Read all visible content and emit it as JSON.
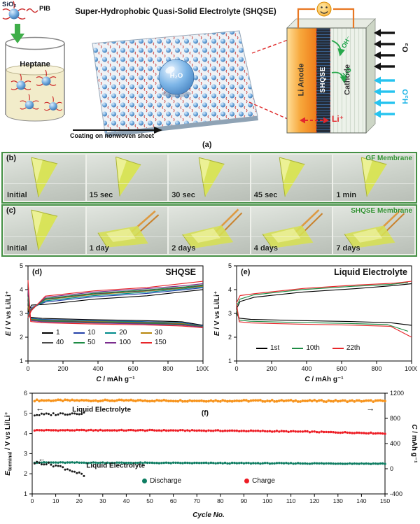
{
  "panel_a": {
    "title": "Super-Hydrophobic Quasi-Solid Electrolyte (SHQSE)",
    "sio2_label": "SiO₂",
    "pib_label": "PIB",
    "beaker_label": "Heptane",
    "droplet_label": "H₂O",
    "coating_label": "Coating on nonwoven sheet",
    "anode_label": "Li Anode",
    "separator_label": "SHQSE",
    "cathode_label": "Cathode",
    "o2_label": "O₂",
    "h2o_label": "H₂O",
    "oh_inner_label": "OH⁻",
    "h2o_inner_label": "H₂O",
    "li_ion_label": "Li⁺",
    "tag": "(a)"
  },
  "panel_b": {
    "tag": "(b)",
    "membrane_label": "GF Membrane",
    "frames": [
      "Initial",
      "15 sec",
      "30 sec",
      "45 sec",
      "1 min"
    ]
  },
  "panel_c": {
    "tag": "(c)",
    "membrane_label": "SHQSE Membrane",
    "frames": [
      "Initial",
      "1 day",
      "2 days",
      "4 days",
      "7 days"
    ]
  },
  "chart_data": [
    {
      "id": "d",
      "type": "line",
      "tag": "(d)",
      "title": "SHQSE",
      "xlabel": {
        "it": "C",
        "rest": " / mAh g⁻¹"
      },
      "ylabel": {
        "it": "E",
        "rest": " / V vs Li/Li⁺"
      },
      "xlim": [
        0,
        1000
      ],
      "ylim": [
        1,
        5
      ],
      "xticks": [
        0,
        200,
        400,
        600,
        800,
        1000
      ],
      "yticks": [
        1,
        2,
        3,
        4,
        5
      ],
      "series": [
        {
          "name": "1",
          "color": "#000000",
          "cap": 1000,
          "discharge": {
            "start": 3.1,
            "plateau": 2.74,
            "end": 2.5
          },
          "charge": {
            "start": 3.05,
            "mid": 3.6,
            "end": 4.0
          }
        },
        {
          "name": "10",
          "color": "#2441a8",
          "cap": 1000,
          "discharge": {
            "start": 3.05,
            "plateau": 2.7,
            "end": 2.48
          },
          "charge": {
            "start": 2.95,
            "mid": 3.7,
            "end": 4.08
          }
        },
        {
          "name": "20",
          "color": "#008b8b",
          "cap": 1000,
          "discharge": {
            "start": 3.0,
            "plateau": 2.68,
            "end": 2.46
          },
          "charge": {
            "start": 2.9,
            "mid": 3.75,
            "end": 4.12
          }
        },
        {
          "name": "30",
          "color": "#b8860b",
          "cap": 1000,
          "discharge": {
            "start": 3.3,
            "plateau": 2.66,
            "end": 2.45
          },
          "charge": {
            "start": 2.9,
            "mid": 3.8,
            "end": 4.15
          }
        },
        {
          "name": "40",
          "color": "#4d4d4d",
          "cap": 1000,
          "discharge": {
            "start": 3.5,
            "plateau": 2.64,
            "end": 2.44
          },
          "charge": {
            "start": 2.88,
            "mid": 3.82,
            "end": 4.17
          }
        },
        {
          "name": "50",
          "color": "#1e8c45",
          "cap": 1000,
          "discharge": {
            "start": 3.7,
            "plateau": 2.62,
            "end": 2.43
          },
          "charge": {
            "start": 2.86,
            "mid": 3.85,
            "end": 4.2
          }
        },
        {
          "name": "100",
          "color": "#7b2d8e",
          "cap": 1000,
          "discharge": {
            "start": 4.0,
            "plateau": 2.6,
            "end": 2.42
          },
          "charge": {
            "start": 2.84,
            "mid": 3.9,
            "end": 4.25
          }
        },
        {
          "name": "150",
          "color": "#e8262a",
          "cap": 1000,
          "discharge": {
            "start": 4.4,
            "plateau": 2.56,
            "end": 2.4
          },
          "charge": {
            "start": 2.82,
            "mid": 3.95,
            "end": 4.35
          }
        }
      ]
    },
    {
      "id": "e",
      "type": "line",
      "tag": "(e)",
      "title": "Liquid Electrolyte",
      "xlabel": {
        "it": "C",
        "rest": " / mAh g⁻¹"
      },
      "ylabel": {
        "it": "E",
        "rest": " / V vs Li/Li⁺"
      },
      "xlim": [
        0,
        1000
      ],
      "ylim": [
        1,
        5
      ],
      "xticks": [
        0,
        200,
        400,
        600,
        800,
        1000
      ],
      "yticks": [
        1,
        2,
        3,
        4,
        5
      ],
      "series": [
        {
          "name": "1st",
          "color": "#000000",
          "cap": 1000,
          "discharge": {
            "start": 3.0,
            "plateau": 2.7,
            "end": 2.5
          },
          "charge": {
            "start": 3.2,
            "mid": 3.9,
            "end": 4.25
          }
        },
        {
          "name": "10th",
          "color": "#1e8c45",
          "cap": 980,
          "discharge": {
            "start": 3.15,
            "plateau": 2.62,
            "end": 2.25
          },
          "charge": {
            "start": 3.3,
            "mid": 4.0,
            "end": 4.3
          }
        },
        {
          "name": "22th",
          "color": "#e8262a",
          "cap": 1000,
          "discharge": {
            "start": 3.4,
            "plateau": 2.55,
            "end": 2.0
          },
          "charge": {
            "start": 3.45,
            "mid": 4.05,
            "end": 4.35
          }
        }
      ]
    },
    {
      "id": "f",
      "type": "scatter",
      "tag": "(f)",
      "xlabel": {
        "it": "Cycle No.",
        "rest": ""
      },
      "ylabel_left": {
        "it": "E",
        "sub": "terminal",
        "rest": " / V vs Li/Li⁺"
      },
      "ylabel_right": {
        "it": "C",
        "rest": " / mAh g⁻¹"
      },
      "xlim": [
        0,
        150
      ],
      "xticks": [
        0,
        10,
        20,
        30,
        40,
        50,
        60,
        70,
        80,
        90,
        100,
        110,
        120,
        130,
        140,
        150
      ],
      "ylim_left": [
        1,
        6
      ],
      "yticks_left": [
        1,
        2,
        3,
        4,
        5,
        6
      ],
      "ylim_right": [
        -400,
        1200
      ],
      "yticks_right": [
        -400,
        0,
        400,
        800,
        1200
      ],
      "series": [
        {
          "name": "SHQSE capacity",
          "axis": "right",
          "color": "#f7941d",
          "x": [
            1,
            150
          ],
          "y": [
            1085,
            1075
          ],
          "jitter": 12,
          "r": 1.9
        },
        {
          "name": "SHQSE charge voltage",
          "axis": "left",
          "color": "#ed1c24",
          "x": [
            1,
            150
          ],
          "y": [
            4.16,
            4.0
          ],
          "pow": 3,
          "jitter": 0.022,
          "r": 1.7
        },
        {
          "name": "SHQSE discharge voltage",
          "axis": "left",
          "color": "#0e7d62",
          "x": [
            1,
            150
          ],
          "y": [
            2.56,
            2.5
          ],
          "jitter": 0.018,
          "r": 1.7
        },
        {
          "name": "Liquid electrolyte charge voltage",
          "axis": "left",
          "color": "#1a1a1a",
          "x": [
            1,
            22
          ],
          "y": [
            4.92,
            5.02
          ],
          "jitter": 0.06,
          "r": 1.5
        },
        {
          "name": "Liquid electrolyte discharge voltage",
          "axis": "left",
          "color": "#1a1a1a",
          "x": [
            1,
            22
          ],
          "y": [
            2.55,
            1.9
          ],
          "pow": 1.8,
          "jitter": 0.07,
          "r": 1.5
        }
      ],
      "annotations": [
        {
          "text": "←",
          "x": 1.5,
          "y": 5.12,
          "size": 12
        },
        {
          "text": "Liquid Electrolyte",
          "x": 17,
          "y": 5.08
        },
        {
          "text": "(f)",
          "x": 72,
          "y": 4.9
        },
        {
          "text": "→",
          "x": 142,
          "y": 5.12,
          "size": 12
        },
        {
          "text": "←",
          "x": 2.5,
          "y": 2.62,
          "size": 11
        },
        {
          "text": "Liquid Electrolyte",
          "x": 23,
          "y": 2.3
        }
      ],
      "legend": [
        {
          "label": "Discharge",
          "color": "#0e7d62"
        },
        {
          "label": "Charge",
          "color": "#ed1c24"
        }
      ]
    }
  ]
}
